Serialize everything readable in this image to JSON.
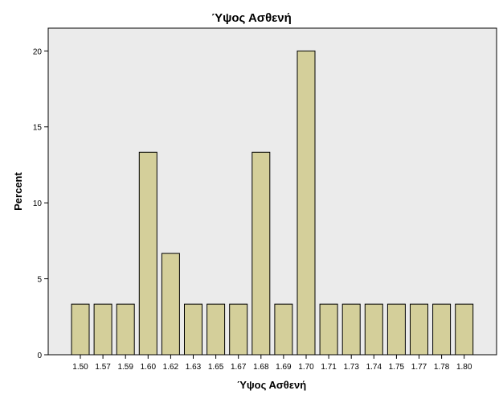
{
  "chart_data": {
    "type": "bar",
    "title": "Ύψος Ασθενή",
    "xlabel": "Ύψος Ασθενή",
    "ylabel": "Percent",
    "categories": [
      "1.50",
      "1.57",
      "1.59",
      "1.60",
      "1.62",
      "1.63",
      "1.65",
      "1.67",
      "1.68",
      "1.69",
      "1.70",
      "1.71",
      "1.73",
      "1.74",
      "1.75",
      "1.77",
      "1.78",
      "1.80"
    ],
    "values": [
      3.33,
      3.33,
      3.33,
      13.33,
      6.67,
      3.33,
      3.33,
      3.33,
      13.33,
      3.33,
      20.0,
      3.33,
      3.33,
      3.33,
      3.33,
      3.33,
      3.33,
      3.33
    ],
    "ylim": [
      0,
      21.5
    ],
    "yticks": [
      0,
      5,
      10,
      15,
      20
    ],
    "grid": false,
    "legend": "none",
    "colors": {
      "bar_fill": "#d4cf9a",
      "bar_stroke": "#000000",
      "plot_background": "#ebebeb",
      "page_background": "#ffffff"
    }
  }
}
